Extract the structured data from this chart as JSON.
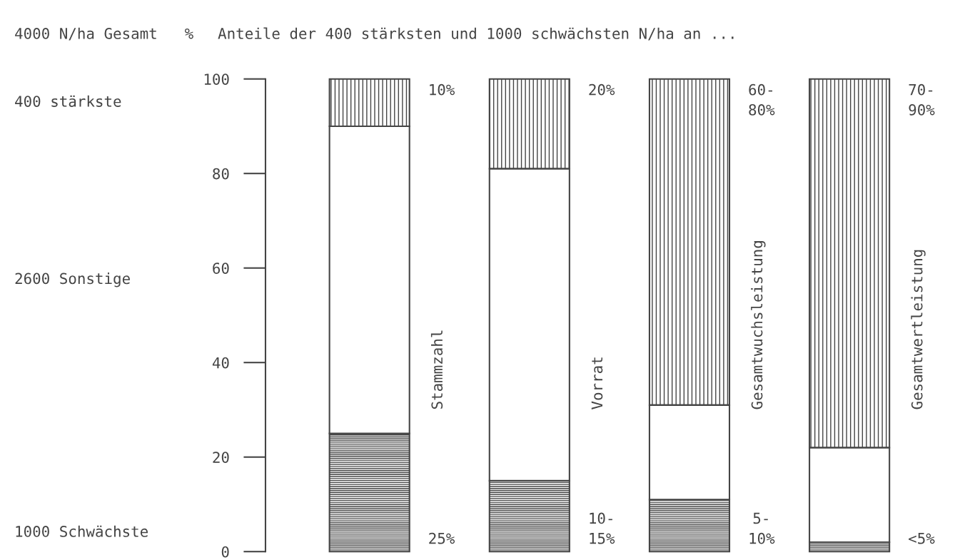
{
  "chart_data": {
    "type": "bar",
    "stacked": true,
    "title": "Anteile der 400 stärksten und 1000 schwächsten N/ha an ...",
    "legend_title": "4000 N/ha Gesamt",
    "ylabel": "%",
    "categories": [
      "Stammzahl",
      "Vorrat",
      "Gesamtwuchsleistung",
      "Gesamtwertleistung"
    ],
    "ylim": [
      0,
      100
    ],
    "yticks": [
      0,
      20,
      40,
      60,
      80,
      100
    ],
    "series": [
      {
        "color": "#444444",
        "values": [
          25,
          15,
          11,
          2
        ]
      },
      {
        "color": "#ffffff",
        "values": [
          65,
          66,
          20,
          20
        ]
      },
      {
        "color": "#444444",
        "values": [
          10,
          19,
          69,
          78
        ]
      }
    ],
    "annotations": [
      "1000 Schwächste",
      "2600 Sonstige",
      "400 stärkste",
      "10%",
      "20%",
      "60-\n80%",
      "70-\n90%",
      "25%",
      "10-\n15%",
      "5-\n10%",
      "<5%"
    ]
  }
}
